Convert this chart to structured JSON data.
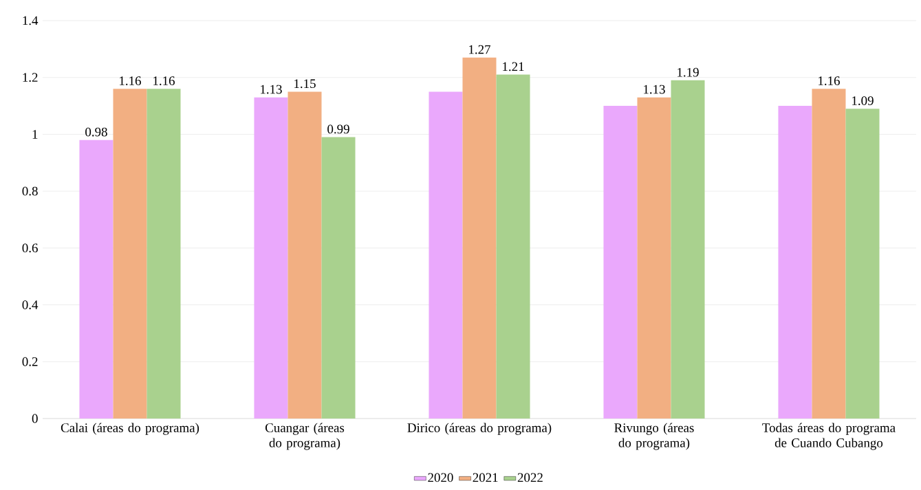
{
  "chart_data": {
    "type": "bar",
    "categories": [
      "Calai (áreas do programa)",
      "Cuangar (áreas do programa)",
      "Dirico (áreas do programa)",
      "Rivungo (áreas do programa)",
      "Todas áreas do programa de Cuando Cubango"
    ],
    "series": [
      {
        "name": "2020",
        "color": "#eaa8fc",
        "values": [
          0.98,
          1.13,
          1.15,
          1.1,
          1.1
        ],
        "value_labels": [
          "0.98",
          "1.13",
          null,
          null,
          null
        ]
      },
      {
        "name": "2021",
        "color": "#f2af82",
        "values": [
          1.16,
          1.15,
          1.27,
          1.13,
          1.16
        ],
        "value_labels": [
          "1.16",
          "1.15",
          "1.27",
          "1.13",
          "1.16"
        ]
      },
      {
        "name": "2022",
        "color": "#a9d18e",
        "values": [
          1.16,
          0.99,
          1.21,
          1.19,
          1.09
        ],
        "value_labels": [
          "1.16",
          "0.99",
          "1.21",
          "1.19",
          "1.09"
        ]
      }
    ],
    "ylim": [
      0,
      1.4
    ],
    "yticks": [
      0,
      0.2,
      0.4,
      0.6,
      0.8,
      1,
      1.2,
      1.4
    ],
    "grid": "y",
    "legend": "bottom"
  }
}
